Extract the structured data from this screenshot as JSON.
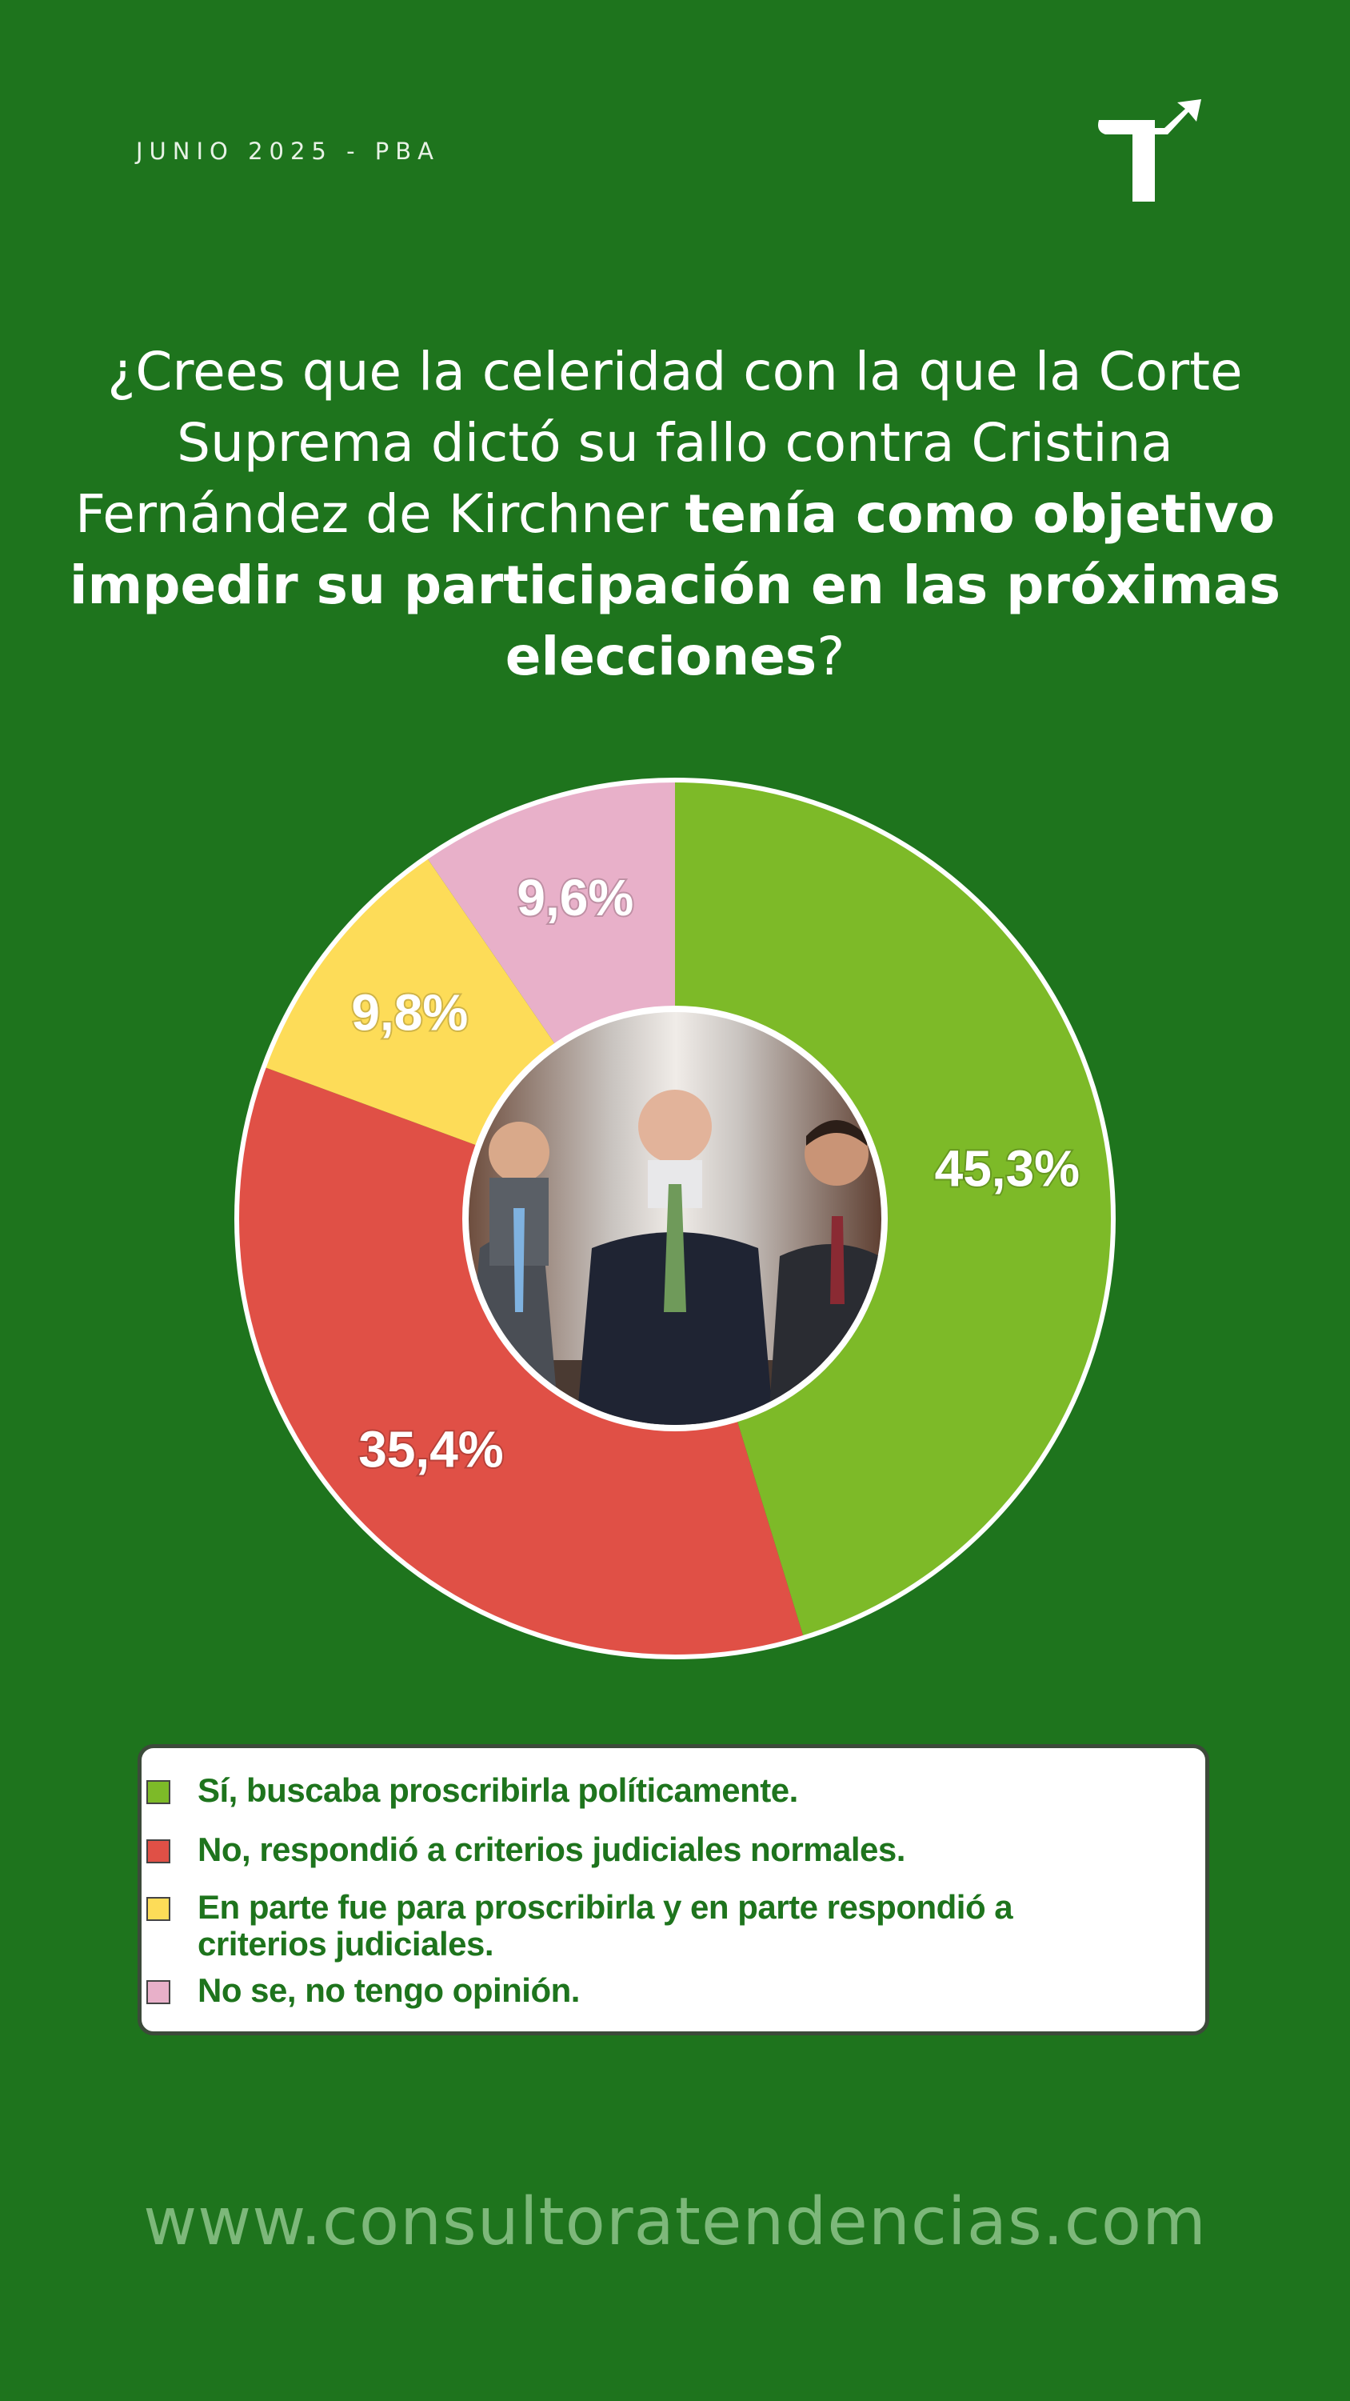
{
  "header": {
    "date": "JUNIO 2025 - PBA"
  },
  "question": {
    "part1": "¿Crees que la celeridad con la que la Corte Suprema dictó su fallo contra Cristina Fernández de Kirchner ",
    "part_bold": "tenía como objetivo impedir su participación en las próximas elecciones",
    "part2": "?"
  },
  "chart_data": {
    "type": "pie",
    "donut": true,
    "categories": [
      "Sí, buscaba proscribirla políticamente.",
      "No, respondió a criterios judiciales normales.",
      "En parte fue para proscribirla y en parte respondió a criterios judiciales.",
      "No se, no tengo opinión."
    ],
    "values": [
      45.3,
      35.4,
      9.8,
      9.6
    ],
    "value_labels": [
      "45,3%",
      "35,4%",
      "9,8%",
      "9,6%"
    ],
    "colors": [
      "#7dba28",
      "#e05046",
      "#fddc58",
      "#e8b0c9"
    ],
    "legend_position": "bottom"
  },
  "center_image": {
    "icon": "judges-photo"
  },
  "website": "www.consultoratendencias.com"
}
